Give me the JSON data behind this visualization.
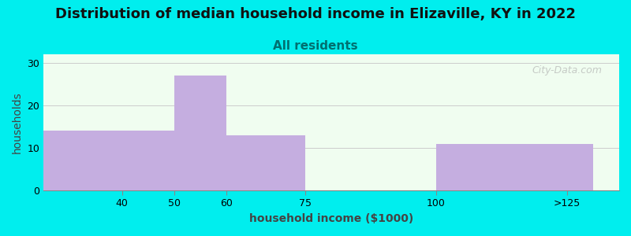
{
  "title": "Distribution of median household income in Elizaville, KY in 2022",
  "subtitle": "All residents",
  "xlabel": "household income ($1000)",
  "ylabel": "households",
  "bar_lefts": [
    25,
    50,
    60,
    100
  ],
  "bar_rights": [
    50,
    60,
    75,
    130
  ],
  "bar_values": [
    14,
    27,
    13,
    11
  ],
  "bar_color": "#c5aee0",
  "xtick_positions": [
    40,
    50,
    60,
    75,
    100
  ],
  "xtick_labels": [
    "40",
    "50",
    "60",
    "75",
    "100"
  ],
  "xtick_extra_pos": 125,
  "xtick_extra_label": ">125",
  "xlim": [
    25,
    135
  ],
  "ylim": [
    0,
    32
  ],
  "yticks": [
    0,
    10,
    20,
    30
  ],
  "background_color": "#00eeee",
  "plot_bg_left_color": "#e8ffe8",
  "plot_bg_right_color": "#f8fff8",
  "title_fontsize": 13,
  "subtitle_fontsize": 11,
  "subtitle_color": "#007070",
  "axis_label_fontsize": 10,
  "watermark_text": "City-Data.com",
  "grid_color": "#cccccc"
}
